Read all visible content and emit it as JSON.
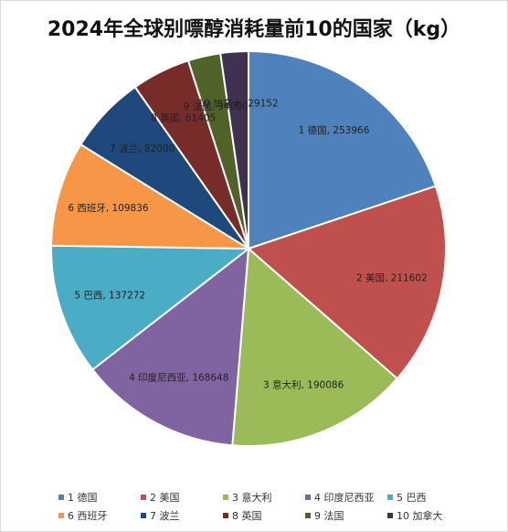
{
  "chart_data": {
    "type": "pie",
    "title": "2024年全球别嘌醇消耗量前10的国家（kg）",
    "legend_position": "bottom",
    "label_format": "category, value",
    "slices": [
      {
        "label": "1 德国",
        "value": 253966,
        "color": "#4F81BD"
      },
      {
        "label": "2 美国",
        "value": 211602,
        "color": "#C0504D"
      },
      {
        "label": "3 意大利",
        "value": 190086,
        "color": "#9BBB59"
      },
      {
        "label": "4 印度尼西亚",
        "value": 168648,
        "color": "#8064A2"
      },
      {
        "label": "5 巴西",
        "value": 137272,
        "color": "#4BACC6"
      },
      {
        "label": "6 西班牙",
        "value": 109836,
        "color": "#F79646"
      },
      {
        "label": "7 波兰",
        "value": 82000,
        "color": "#1F497D"
      },
      {
        "label": "8 英国",
        "value": 61405,
        "color": "#772C2A"
      },
      {
        "label": "9 法国",
        "value": 34000,
        "color": "#4F6228"
      },
      {
        "label": "10 加拿大",
        "value": 29152,
        "color": "#3F3151"
      }
    ]
  }
}
